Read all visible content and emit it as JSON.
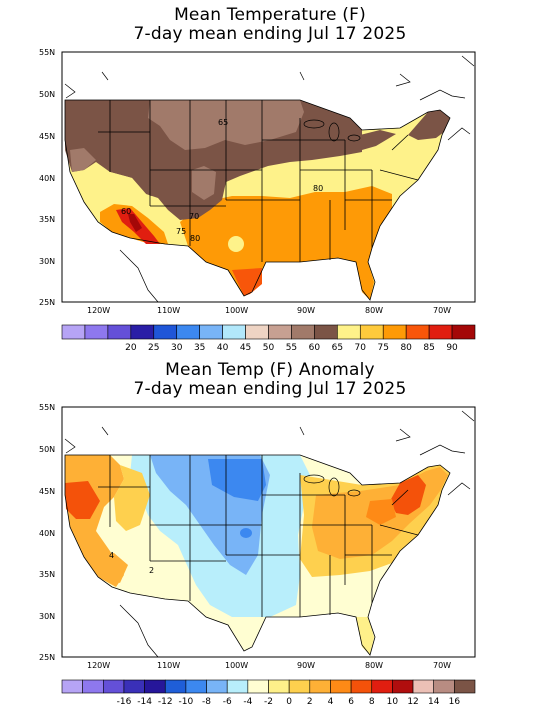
{
  "top": {
    "title_line1": "Mean Temperature (F)",
    "title_line2": "7-day mean ending Jul 17 2025",
    "lat_labels": [
      "55N",
      "50N",
      "45N",
      "40N",
      "35N",
      "30N",
      "25N"
    ],
    "lon_labels": [
      "120W",
      "110W",
      "100W",
      "90W",
      "80W",
      "70W"
    ],
    "contour_labels": [
      "65",
      "60",
      "70",
      "75",
      "80"
    ],
    "colorbar": {
      "colors": [
        "#b6a4f5",
        "#8e78ee",
        "#6450d8",
        "#2a1ea6",
        "#1f56d8",
        "#3c88f0",
        "#78b4f7",
        "#b2e8fb",
        "#eed4c4",
        "#c7a092",
        "#a17a6a",
        "#7b5446",
        "#fef28a",
        "#feca3c",
        "#fe9a06",
        "#f8560a",
        "#e01e10",
        "#a40808"
      ],
      "labels": [
        "20",
        "25",
        "30",
        "35",
        "40",
        "45",
        "50",
        "55",
        "60",
        "65",
        "70",
        "75",
        "80",
        "85",
        "90"
      ]
    }
  },
  "bottom": {
    "title_line1": "Mean Temp (F) Anomaly",
    "title_line2": "7-day mean ending Jul 17 2025",
    "lat_labels": [
      "55N",
      "50N",
      "45N",
      "40N",
      "35N",
      "30N",
      "25N"
    ],
    "lon_labels": [
      "120W",
      "110W",
      "100W",
      "90W",
      "80W",
      "70W"
    ],
    "contour_labels": [
      "4",
      "2"
    ],
    "colorbar": {
      "colors": [
        "#b6a4f5",
        "#8e78ee",
        "#6450d8",
        "#3a30b8",
        "#26169a",
        "#1f5ed8",
        "#3c88f0",
        "#78b4f7",
        "#b8eefb",
        "#fffed2",
        "#fef08a",
        "#fed04e",
        "#feb036",
        "#fe8a16",
        "#f4520a",
        "#e01e10",
        "#b00e0e",
        "#ecc0b6",
        "#b88c82",
        "#7b5446"
      ],
      "labels": [
        "-16",
        "-14",
        "-12",
        "-10",
        "-8",
        "-6",
        "-4",
        "-2",
        "0",
        "2",
        "4",
        "6",
        "8",
        "10",
        "12",
        "14",
        "16"
      ]
    }
  }
}
